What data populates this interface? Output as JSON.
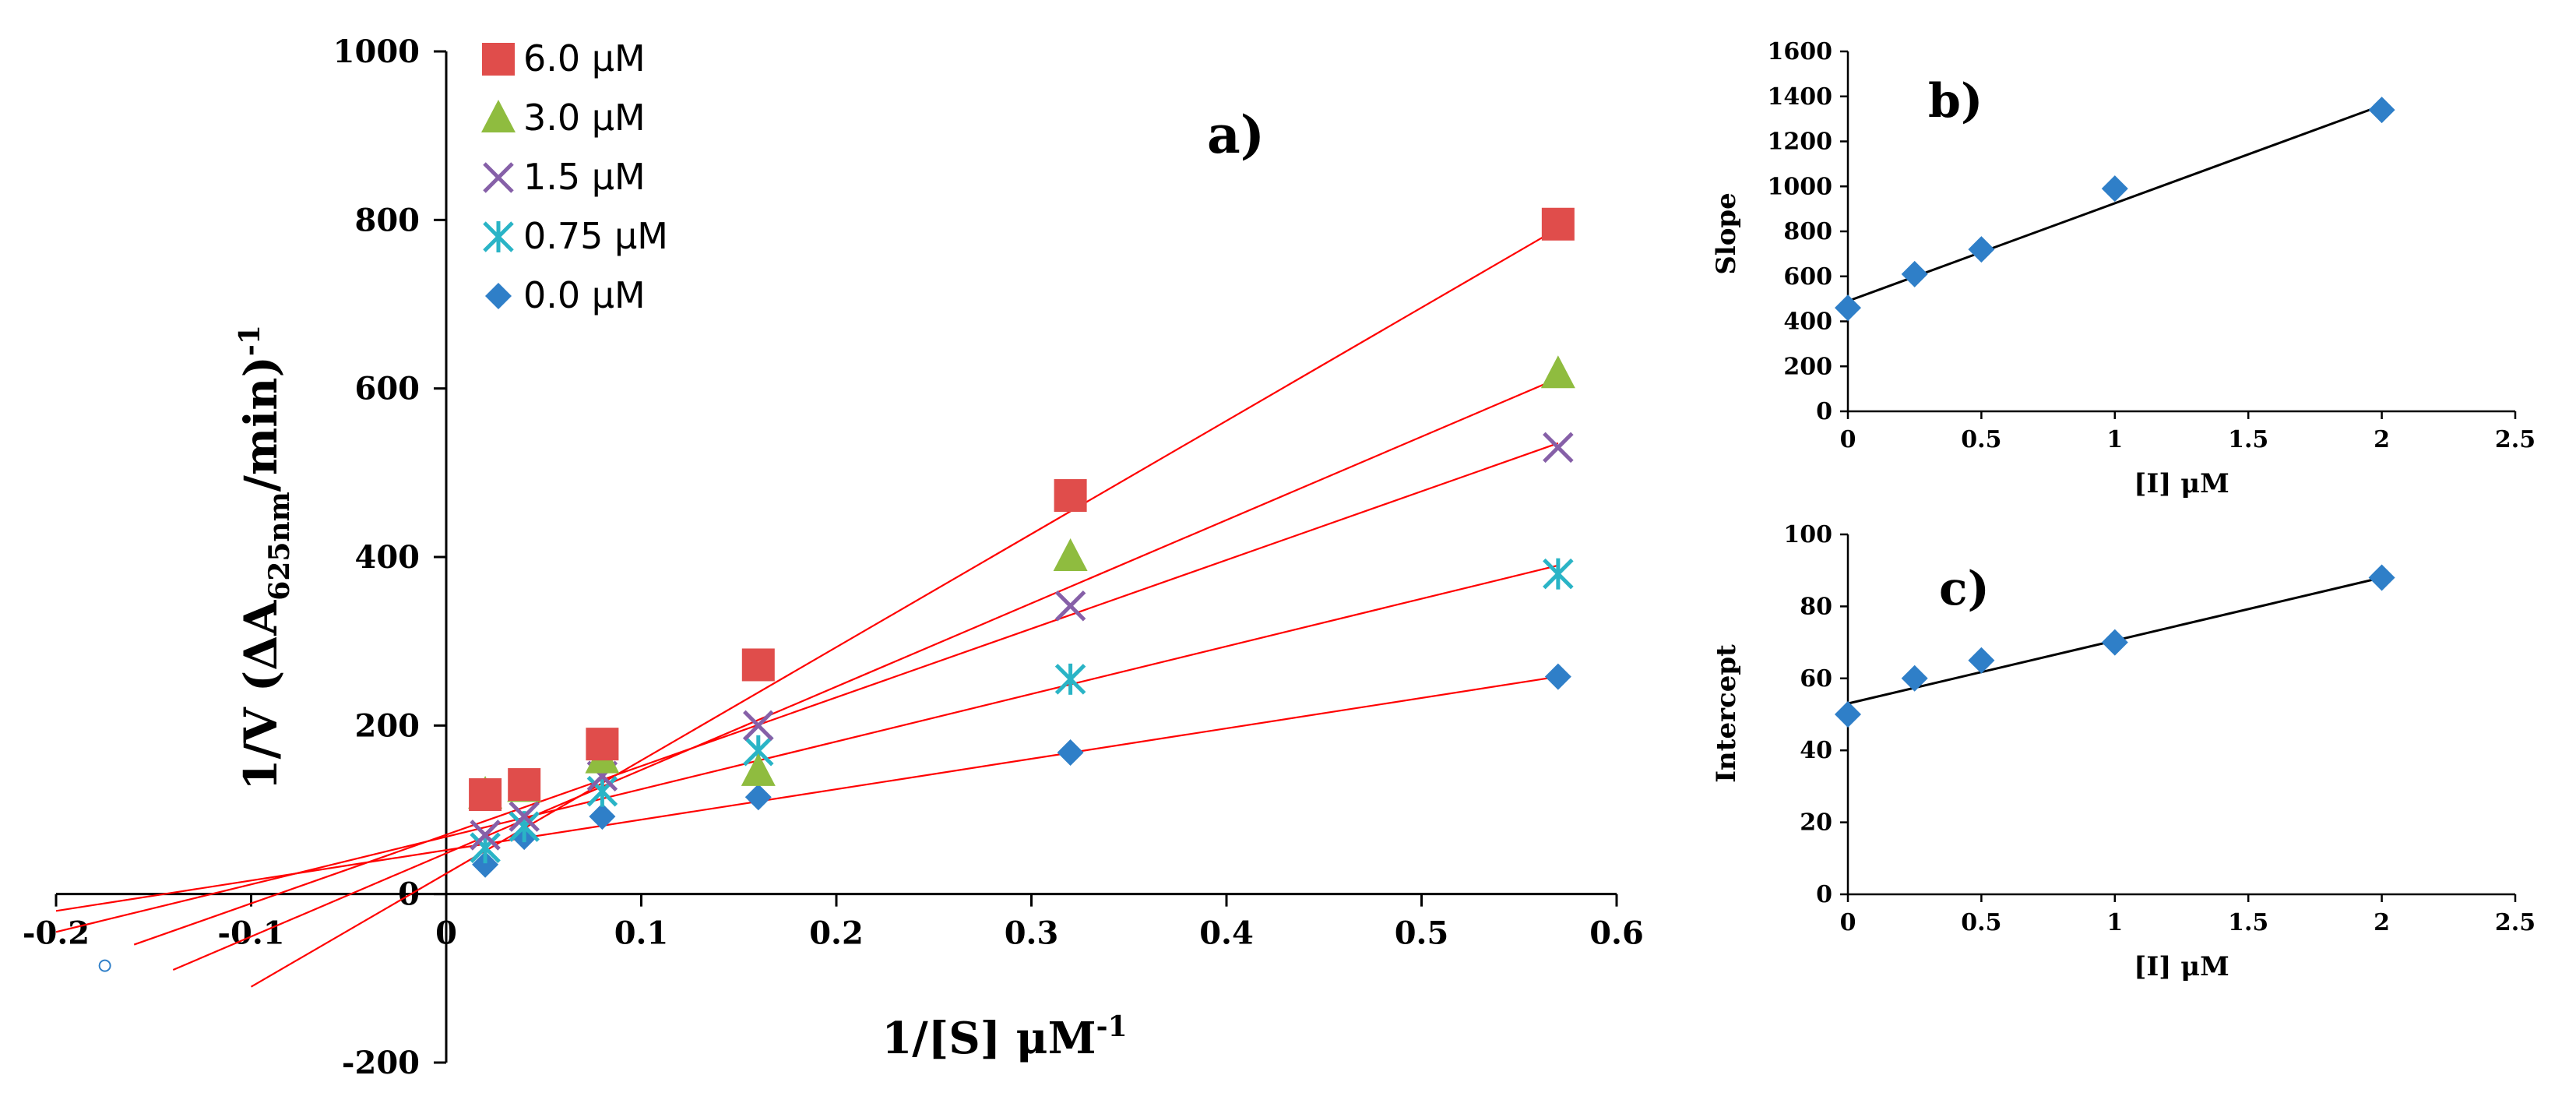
{
  "figure": {
    "panel_labels": [
      "a)",
      "b)",
      "c)"
    ]
  },
  "colors": {
    "fit_line_a": "#ff0000",
    "fit_line_bc": "#000000",
    "axis": "#000000",
    "series_6_0": "#e04d4b",
    "series_3_0": "#8fbc3f",
    "series_1_5": "#8660a8",
    "series_0_75": "#2ab4c6",
    "series_0_0": "#2f7fc8"
  },
  "chart_data": [
    {
      "type": "scatter",
      "panel": "a)",
      "title": "",
      "xlabel": "1/[S] μM",
      "xlabel_sup": "-1",
      "ylabel": "1/V (ΔA",
      "ylabel_sub": "625nm",
      "ylabel_tail": "/min)",
      "ylabel_sup": "-1",
      "xlim": [
        -0.2,
        0.6
      ],
      "ylim": [
        -200,
        1000
      ],
      "xticks": [
        -0.2,
        -0.1,
        0,
        0.1,
        0.2,
        0.3,
        0.4,
        0.5,
        0.6
      ],
      "xtick_labels": [
        "-0.2",
        "-0.1",
        "0",
        "0.1",
        "0.2",
        "0.3",
        "0.4",
        "0.5",
        "0.6"
      ],
      "yticks": [
        -200,
        0,
        200,
        400,
        600,
        800,
        1000
      ],
      "ytick_labels": [
        "-200",
        "0",
        "200",
        "400",
        "600",
        "800",
        "1000"
      ],
      "grid": false,
      "legend_position": "top-left",
      "x": [
        0.02,
        0.04,
        0.08,
        0.16,
        0.32,
        0.57
      ],
      "series": [
        {
          "name": "6.0 μM",
          "marker": "square",
          "color": "#e04d4b",
          "y": [
            118,
            130,
            178,
            272,
            473,
            795
          ],
          "fit": {
            "x0": -0.1,
            "y0": -110,
            "x1": 0.57,
            "y1": 790
          }
        },
        {
          "name": "3.0 μM",
          "marker": "triangle",
          "color": "#8fbc3f",
          "y": [
            118,
            126,
            160,
            145,
            400,
            617
          ],
          "fit": {
            "x0": -0.14,
            "y0": -90,
            "x1": 0.57,
            "y1": 612
          }
        },
        {
          "name": "1.5 μM",
          "marker": "x",
          "color": "#8660a8",
          "y": [
            70,
            92,
            140,
            200,
            342,
            530
          ],
          "fit": {
            "x0": -0.16,
            "y0": -60,
            "x1": 0.57,
            "y1": 535
          }
        },
        {
          "name": "0.75 μM",
          "marker": "star",
          "color": "#2ab4c6",
          "y": [
            55,
            80,
            122,
            170,
            255,
            380
          ],
          "fit": {
            "x0": -0.2,
            "y0": -45,
            "x1": 0.57,
            "y1": 390
          }
        },
        {
          "name": "0.0 μM",
          "marker": "diamond",
          "color": "#2f7fc8",
          "y": [
            35,
            68,
            92,
            115,
            168,
            258
          ],
          "fit": {
            "x0": -0.2,
            "y0": -20,
            "x1": 0.57,
            "y1": 258
          }
        }
      ],
      "open_point": {
        "x": -0.175,
        "y": -85
      }
    },
    {
      "type": "scatter",
      "panel": "b)",
      "title": "",
      "xlabel": "[I] μM",
      "ylabel": "Slope",
      "xlim": [
        0,
        2.5
      ],
      "ylim": [
        0,
        1600
      ],
      "xticks": [
        0,
        0.5,
        1,
        1.5,
        2,
        2.5
      ],
      "xtick_labels": [
        "0",
        "0.5",
        "1",
        "1.5",
        "2",
        "2.5"
      ],
      "yticks": [
        0,
        200,
        400,
        600,
        800,
        1000,
        1200,
        1400,
        1600
      ],
      "ytick_labels": [
        "0",
        "200",
        "400",
        "600",
        "800",
        "1000",
        "1200",
        "1400",
        "1600"
      ],
      "grid": false,
      "x": [
        0,
        0.25,
        0.5,
        1,
        2
      ],
      "y": [
        460,
        610,
        720,
        990,
        1340
      ],
      "fit": {
        "x0": 0,
        "y0": 490,
        "x1": 2,
        "y1": 1360
      }
    },
    {
      "type": "scatter",
      "panel": "c)",
      "title": "",
      "xlabel": "[I] μM",
      "ylabel": "Intercept",
      "xlim": [
        0,
        2.5
      ],
      "ylim": [
        0,
        100
      ],
      "xticks": [
        0,
        0.5,
        1,
        1.5,
        2,
        2.5
      ],
      "xtick_labels": [
        "0",
        "0.5",
        "1",
        "1.5",
        "2",
        "2.5"
      ],
      "yticks": [
        0,
        20,
        40,
        60,
        80,
        100
      ],
      "ytick_labels": [
        "0",
        "20",
        "40",
        "60",
        "80",
        "100"
      ],
      "grid": false,
      "x": [
        0,
        0.25,
        0.5,
        1,
        2
      ],
      "y": [
        50,
        60,
        65,
        70,
        88
      ],
      "fit": {
        "x0": 0,
        "y0": 53,
        "x1": 2,
        "y1": 88
      }
    }
  ]
}
